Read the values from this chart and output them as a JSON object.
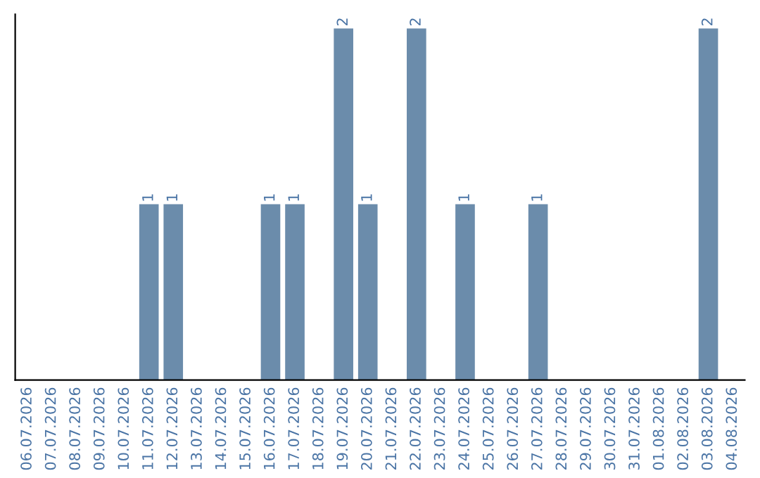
{
  "chart_data": {
    "type": "bar",
    "categories": [
      "06.07.2026",
      "07.07.2026",
      "08.07.2026",
      "09.07.2026",
      "10.07.2026",
      "11.07.2026",
      "12.07.2026",
      "13.07.2026",
      "14.07.2026",
      "15.07.2026",
      "16.07.2026",
      "17.07.2026",
      "18.07.2026",
      "19.07.2026",
      "20.07.2026",
      "21.07.2026",
      "22.07.2026",
      "23.07.2026",
      "24.07.2026",
      "25.07.2026",
      "26.07.2026",
      "27.07.2026",
      "28.07.2026",
      "29.07.2026",
      "30.07.2026",
      "31.07.2026",
      "01.08.2026",
      "02.08.2026",
      "03.08.2026",
      "04.08.2026"
    ],
    "values": [
      0,
      0,
      0,
      0,
      0,
      1,
      1,
      0,
      0,
      0,
      1,
      1,
      0,
      2,
      1,
      0,
      2,
      0,
      1,
      0,
      0,
      1,
      0,
      0,
      0,
      0,
      0,
      0,
      2,
      0
    ],
    "value_labels": [
      null,
      null,
      null,
      null,
      null,
      "1",
      "1",
      null,
      null,
      null,
      "1",
      "1",
      null,
      "2",
      "1",
      null,
      "2",
      null,
      "1",
      null,
      null,
      "1",
      null,
      null,
      null,
      null,
      null,
      null,
      "2",
      null
    ],
    "color": "#6b8cab",
    "ylim": [
      0,
      2.08
    ],
    "tick_labels": "x",
    "grid": false,
    "legend": false
  }
}
